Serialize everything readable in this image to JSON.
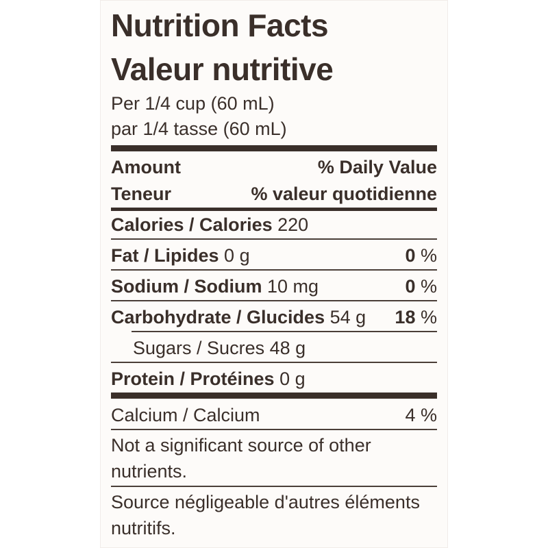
{
  "label": {
    "title_en": "Nutrition Facts",
    "title_fr": "Valeur nutritive",
    "serving_en": "Per 1/4 cup (60 mL)",
    "serving_fr": "par 1/4 tasse (60 mL)",
    "header": {
      "amount_en": "Amount",
      "amount_fr": "Teneur",
      "dv_en": "% Daily Value",
      "dv_fr": "% valeur quotidienne"
    },
    "calories": {
      "label": "Calories / Calories",
      "value": "220"
    },
    "fat": {
      "label": "Fat / Lipides",
      "value": "0 g",
      "dv": "0",
      "pct": "%"
    },
    "sodium": {
      "label": "Sodium / Sodium",
      "value": "10 mg",
      "dv": "0",
      "pct": "%"
    },
    "carbohydrate": {
      "label": "Carbohydrate / Glucides",
      "value": "54 g",
      "dv": "18",
      "pct": "%"
    },
    "sugars": {
      "label": "Sugars / Sucres",
      "value": "48 g"
    },
    "protein": {
      "label": "Protein / Protéines",
      "value": "0 g"
    },
    "calcium": {
      "label": "Calcium / Calcium",
      "dv": "4 %"
    },
    "note_en": "Not a significant source of other nutrients.",
    "note_fr": "Source négligeable d'autres éléments nutritifs."
  }
}
